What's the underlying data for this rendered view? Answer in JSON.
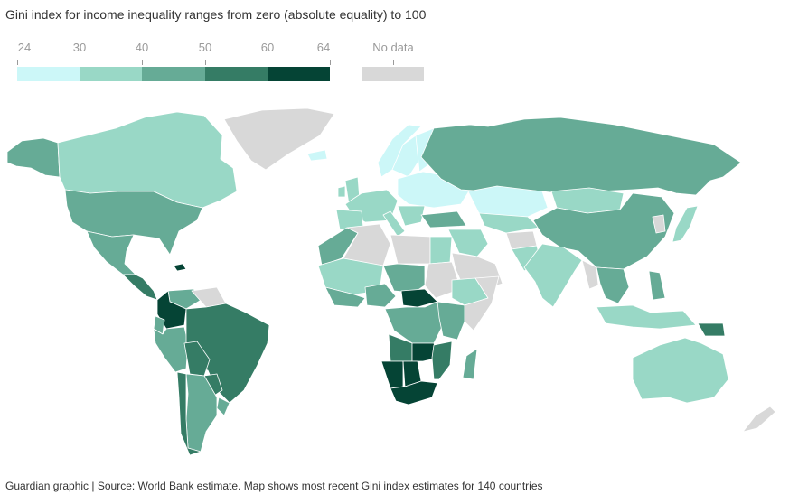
{
  "title": "Gini index for income inequality ranges from zero (absolute equality) to 100",
  "legend": {
    "breaks": [
      "24",
      "30",
      "40",
      "50",
      "60",
      "64"
    ],
    "no_data_label": "No data",
    "colors": [
      "#ccf7f8",
      "#99d8c6",
      "#66ab96",
      "#357c65",
      "#054435"
    ],
    "no_data_color": "#d8d8d8"
  },
  "map": {
    "ocean_color": "#ffffff",
    "border_color": "#ffffff",
    "regions": [
      {
        "name": "Alaska",
        "bin": 2
      },
      {
        "name": "Canada",
        "bin": 1
      },
      {
        "name": "Greenland",
        "bin": null
      },
      {
        "name": "United States",
        "bin": 2
      },
      {
        "name": "Mexico",
        "bin": 2
      },
      {
        "name": "Central America",
        "bin": 3
      },
      {
        "name": "Haiti",
        "bin": 4
      },
      {
        "name": "Venezuela",
        "bin": 2
      },
      {
        "name": "Guianas",
        "bin": null
      },
      {
        "name": "Colombia",
        "bin": 4
      },
      {
        "name": "Ecuador",
        "bin": 2
      },
      {
        "name": "Peru",
        "bin": 2
      },
      {
        "name": "Brazil",
        "bin": 3
      },
      {
        "name": "Bolivia",
        "bin": 3
      },
      {
        "name": "Paraguay",
        "bin": 3
      },
      {
        "name": "Uruguay",
        "bin": 2
      },
      {
        "name": "Argentina",
        "bin": 2
      },
      {
        "name": "Chile",
        "bin": 3
      },
      {
        "name": "Iceland",
        "bin": 0
      },
      {
        "name": "Norway",
        "bin": 0
      },
      {
        "name": "Sweden",
        "bin": 0
      },
      {
        "name": "Finland",
        "bin": 0
      },
      {
        "name": "United Kingdom",
        "bin": 1
      },
      {
        "name": "Ireland",
        "bin": 1
      },
      {
        "name": "Western Europe",
        "bin": 1
      },
      {
        "name": "Iberia",
        "bin": 1
      },
      {
        "name": "Italy",
        "bin": 1
      },
      {
        "name": "Eastern Europe",
        "bin": 0
      },
      {
        "name": "Balkans",
        "bin": 1
      },
      {
        "name": "Turkey",
        "bin": 2
      },
      {
        "name": "Russia",
        "bin": 2
      },
      {
        "name": "Kazakhstan",
        "bin": 0
      },
      {
        "name": "Central Asia",
        "bin": 1
      },
      {
        "name": "Mongolia",
        "bin": 1
      },
      {
        "name": "China",
        "bin": 2
      },
      {
        "name": "Korea",
        "bin": null
      },
      {
        "name": "Japan",
        "bin": 1
      },
      {
        "name": "Middle East",
        "bin": 1
      },
      {
        "name": "Arabia",
        "bin": null
      },
      {
        "name": "Afghanistan",
        "bin": null
      },
      {
        "name": "Pakistan",
        "bin": 1
      },
      {
        "name": "India",
        "bin": 1
      },
      {
        "name": "Myanmar",
        "bin": null
      },
      {
        "name": "Southeast Asia",
        "bin": 2
      },
      {
        "name": "Philippines",
        "bin": 2
      },
      {
        "name": "Indonesia",
        "bin": 1
      },
      {
        "name": "Papua New Guinea",
        "bin": 3
      },
      {
        "name": "Australia",
        "bin": 1
      },
      {
        "name": "New Zealand",
        "bin": null
      },
      {
        "name": "Morocco",
        "bin": 2
      },
      {
        "name": "Algeria",
        "bin": null
      },
      {
        "name": "Libya",
        "bin": null
      },
      {
        "name": "Egypt",
        "bin": 1
      },
      {
        "name": "Sudan",
        "bin": null
      },
      {
        "name": "West Sahel",
        "bin": 1
      },
      {
        "name": "Chad",
        "bin": 2
      },
      {
        "name": "Ethiopia",
        "bin": 1
      },
      {
        "name": "Somalia",
        "bin": null
      },
      {
        "name": "West Africa",
        "bin": 2
      },
      {
        "name": "Nigeria",
        "bin": 2
      },
      {
        "name": "Central African Republic",
        "bin": 4
      },
      {
        "name": "DR Congo",
        "bin": 2
      },
      {
        "name": "East Africa",
        "bin": 2
      },
      {
        "name": "Angola",
        "bin": 3
      },
      {
        "name": "Zambia",
        "bin": 4
      },
      {
        "name": "Namibia",
        "bin": 4
      },
      {
        "name": "Botswana",
        "bin": 4
      },
      {
        "name": "South Africa",
        "bin": 4
      },
      {
        "name": "Mozambique",
        "bin": 3
      },
      {
        "name": "Madagascar",
        "bin": 2
      }
    ]
  },
  "source": "Guardian graphic | Source: World Bank estimate. Map shows most recent Gini index estimates for 140 countries"
}
